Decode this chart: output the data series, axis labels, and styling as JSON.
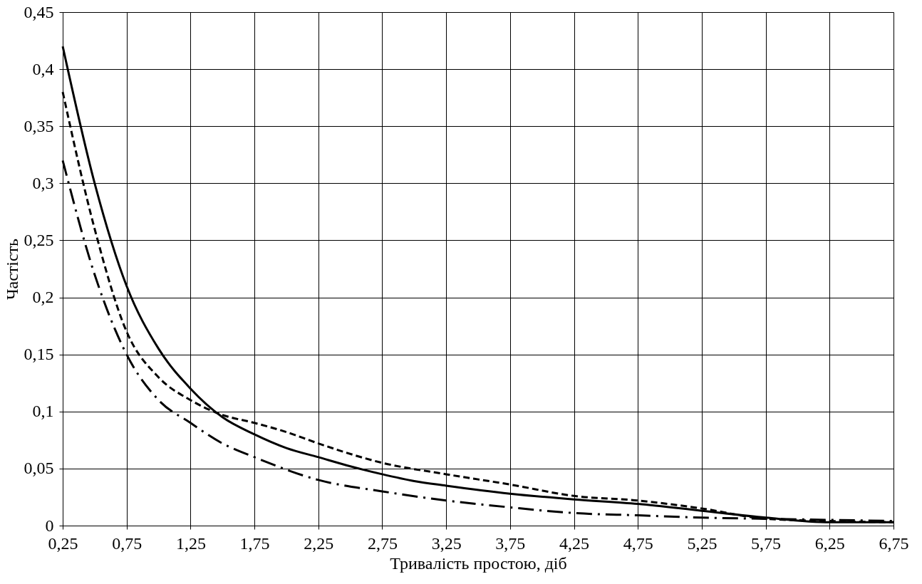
{
  "chart_data": {
    "type": "line",
    "xlabel": "Тривалість простою, діб",
    "ylabel": "Частість",
    "xlim": [
      0.25,
      6.75
    ],
    "ylim": [
      0,
      0.45
    ],
    "xticks": [
      {
        "value": 0.25,
        "label": "0,25"
      },
      {
        "value": 0.75,
        "label": "0,75"
      },
      {
        "value": 1.25,
        "label": "1,25"
      },
      {
        "value": 1.75,
        "label": "1,75"
      },
      {
        "value": 2.25,
        "label": "2,25"
      },
      {
        "value": 2.75,
        "label": "2,75"
      },
      {
        "value": 3.25,
        "label": "3,25"
      },
      {
        "value": 3.75,
        "label": "3,75"
      },
      {
        "value": 4.25,
        "label": "4,25"
      },
      {
        "value": 4.75,
        "label": "4,75"
      },
      {
        "value": 5.25,
        "label": "5,25"
      },
      {
        "value": 5.75,
        "label": "5,75"
      },
      {
        "value": 6.25,
        "label": "6,25"
      },
      {
        "value": 6.75,
        "label": "6,75"
      }
    ],
    "yticks": [
      0,
      {
        "value": 0.05,
        "label": "0,05"
      },
      {
        "value": 0.1,
        "label": "0,1"
      },
      {
        "value": 0.15,
        "label": "0,15"
      },
      {
        "value": 0.2,
        "label": "0,2"
      },
      {
        "value": 0.25,
        "label": "0,25"
      },
      {
        "value": 0.3,
        "label": "0,3"
      },
      {
        "value": 0.35,
        "label": "0,35"
      },
      {
        "value": 0.4,
        "label": "0,4"
      },
      {
        "value": 0.45,
        "label": "0,45"
      }
    ],
    "grid": true,
    "marker": "none",
    "series": [
      {
        "color": "#000000",
        "line_style": "solid",
        "x": [
          0.25,
          0.5,
          0.75,
          1.0,
          1.25,
          1.5,
          1.75,
          2.0,
          2.25,
          2.5,
          2.75,
          3.0,
          3.25,
          3.75,
          4.25,
          4.75,
          5.25,
          5.75,
          6.25,
          6.75
        ],
        "values": [
          0.42,
          0.3,
          0.21,
          0.155,
          0.12,
          0.095,
          0.08,
          0.068,
          0.06,
          0.052,
          0.045,
          0.039,
          0.035,
          0.028,
          0.023,
          0.019,
          0.013,
          0.007,
          0.003,
          0.003
        ]
      },
      {
        "color": "#000000",
        "line_style": "dashed",
        "x": [
          0.25,
          0.5,
          0.75,
          1.0,
          1.25,
          1.5,
          1.75,
          2.0,
          2.25,
          2.75,
          3.25,
          3.75,
          4.25,
          4.75,
          5.25,
          5.75,
          6.25,
          6.75
        ],
        "values": [
          0.38,
          0.26,
          0.17,
          0.13,
          0.11,
          0.097,
          0.09,
          0.082,
          0.072,
          0.055,
          0.045,
          0.036,
          0.026,
          0.022,
          0.015,
          0.006,
          0.004,
          0.003
        ]
      },
      {
        "color": "#000000",
        "line_style": "dashdot",
        "x": [
          0.25,
          0.5,
          0.75,
          1.0,
          1.25,
          1.5,
          1.75,
          2.25,
          2.75,
          3.25,
          3.75,
          4.25,
          4.75,
          5.25,
          5.75,
          6.25,
          6.75
        ],
        "values": [
          0.32,
          0.22,
          0.15,
          0.11,
          0.09,
          0.072,
          0.06,
          0.04,
          0.03,
          0.022,
          0.016,
          0.011,
          0.009,
          0.007,
          0.006,
          0.005,
          0.004
        ]
      }
    ]
  }
}
